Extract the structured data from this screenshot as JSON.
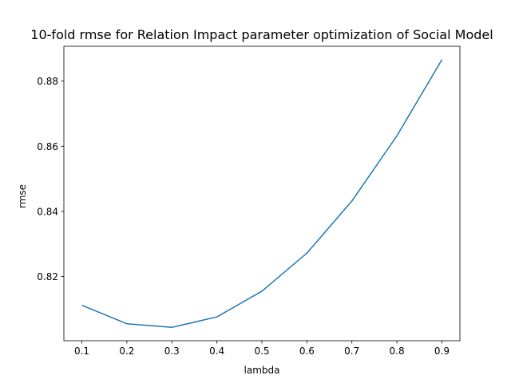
{
  "chart_data": {
    "type": "line",
    "title": "10-fold rmse for Relation Impact parameter optimization of Social Model",
    "xlabel": "lambda",
    "ylabel": "rmse",
    "x": [
      0.1,
      0.2,
      0.3,
      0.4,
      0.5,
      0.6,
      0.7,
      0.8,
      0.9
    ],
    "series": [
      {
        "values": [
          0.8112,
          0.8055,
          0.8044,
          0.8076,
          0.8155,
          0.8272,
          0.8432,
          0.8632,
          0.8866
        ],
        "color": "#1f77b4"
      }
    ],
    "xlim": [
      0.06,
      0.94
    ],
    "ylim": [
      0.8003,
      0.8907
    ],
    "xticks": [
      "0.1",
      "0.2",
      "0.3",
      "0.4",
      "0.5",
      "0.6",
      "0.7",
      "0.8",
      "0.9"
    ],
    "yticks": [
      "0.82",
      "0.84",
      "0.86",
      "0.88"
    ],
    "grid": false,
    "legend": false
  }
}
